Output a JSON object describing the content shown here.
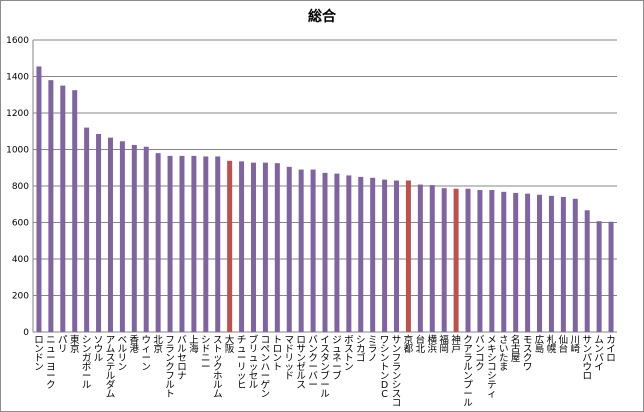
{
  "chart_data": {
    "type": "bar",
    "title": "総合",
    "xlabel": "",
    "ylabel": "",
    "ylim": [
      0,
      1600
    ],
    "yticks": [
      0,
      200,
      400,
      600,
      800,
      1000,
      1200,
      1400,
      1600
    ],
    "grid": true,
    "legend": "none",
    "categories": [
      "ロンドン",
      "ニューヨーク",
      "パリ",
      "東京",
      "シンガポール",
      "ソウル",
      "アムステルダム",
      "ベルリン",
      "香港",
      "ウィーン",
      "北京",
      "フランクフルト",
      "バルセロナ",
      "上海",
      "シドニー",
      "ストックホルム",
      "大阪",
      "チューリッヒ",
      "ブリュッセル",
      "コペンハーゲン",
      "トロント",
      "マドリッド",
      "ロサンゼルス",
      "バンクーバー",
      "イスタンブール",
      "ジュネーブ",
      "ボストン",
      "シカゴ",
      "ミラノ",
      "ワシントンDC",
      "サンフランシスコ",
      "京都",
      "台北",
      "横浜",
      "福岡",
      "神戸",
      "クアラルンプール",
      "バンコク",
      "メキシコシティ",
      "さいたま",
      "名古屋",
      "モスクワ",
      "広島",
      "札幌",
      "仙台",
      "川崎",
      "サンパウロ",
      "ムンバイ",
      "カイロ"
    ],
    "values": [
      1455,
      1380,
      1350,
      1325,
      1120,
      1085,
      1065,
      1045,
      1025,
      1015,
      980,
      965,
      965,
      965,
      962,
      962,
      938,
      935,
      928,
      928,
      925,
      905,
      890,
      890,
      872,
      868,
      858,
      850,
      845,
      835,
      830,
      830,
      808,
      805,
      788,
      785,
      785,
      778,
      778,
      768,
      762,
      758,
      752,
      746,
      740,
      730,
      667,
      607,
      604
    ],
    "bar_color": "#8064a2",
    "highlight_color": "#c0504d",
    "highlighted": [
      "大阪",
      "京都",
      "神戸"
    ]
  }
}
